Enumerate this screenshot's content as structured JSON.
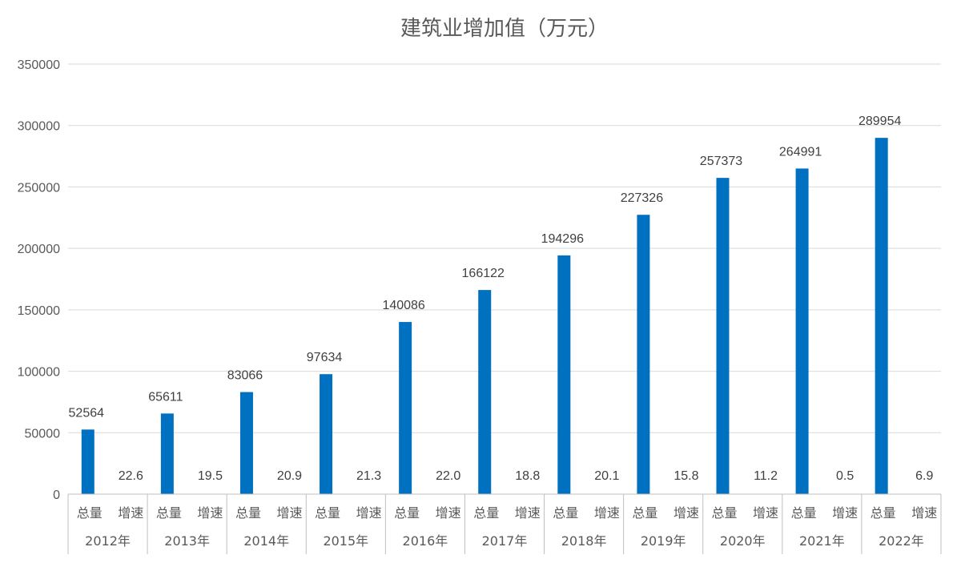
{
  "chart_data": {
    "type": "bar",
    "title": "建筑业增加值（万元）",
    "ylim": [
      0,
      350000
    ],
    "ytick_step": 50000,
    "grid": true,
    "years": [
      "2012年",
      "2013年",
      "2014年",
      "2015年",
      "2016年",
      "2017年",
      "2018年",
      "2019年",
      "2020年",
      "2021年",
      "2022年"
    ],
    "sub_categories": [
      "总量",
      "增速"
    ],
    "series": [
      {
        "values": [
          52564,
          65611,
          83066,
          97634,
          140086,
          166122,
          194296,
          227326,
          257373,
          264991,
          289954
        ]
      },
      {
        "values": [
          22.6,
          19.5,
          20.9,
          21.3,
          22.0,
          18.8,
          20.1,
          15.8,
          11.2,
          0.5,
          6.9
        ]
      }
    ],
    "colors": {
      "bar": "#0070c0",
      "grid": "#d9d9d9",
      "text": "#595959"
    }
  }
}
